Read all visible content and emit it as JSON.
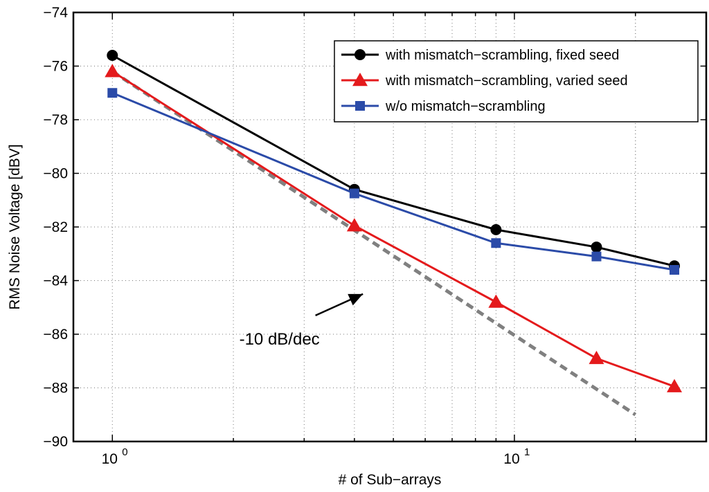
{
  "chart_data": {
    "type": "line",
    "xscale": "log",
    "xlabel": "# of Sub−arrays",
    "ylabel": "RMS Noise Voltage [dBV]",
    "xlim": [
      0.8,
      30
    ],
    "ylim": [
      -90,
      -74
    ],
    "x_ticks": [
      {
        "value": 1,
        "base": "10",
        "exp": "0"
      },
      {
        "value": 10,
        "base": "10",
        "exp": "1"
      }
    ],
    "y_ticks": [
      -74,
      -76,
      -78,
      -80,
      -82,
      -84,
      -86,
      -88,
      -90
    ],
    "y_tick_labels": [
      "−74",
      "−76",
      "−78",
      "−80",
      "−82",
      "−84",
      "−86",
      "−88",
      "−90"
    ],
    "grid": true,
    "legend_position": "top-right",
    "series": [
      {
        "name": "with mismatch−scrambling, fixed seed",
        "color": "#000000",
        "marker": "circle",
        "x": [
          1,
          4,
          9,
          16,
          25
        ],
        "y": [
          -75.6,
          -80.6,
          -82.1,
          -82.75,
          -83.45
        ]
      },
      {
        "name": "with mismatch−scrambling, varied seed",
        "color": "#e41a1c",
        "marker": "triangle",
        "x": [
          1,
          4,
          9,
          16,
          25
        ],
        "y": [
          -76.2,
          -81.95,
          -84.8,
          -86.9,
          -87.95
        ]
      },
      {
        "name": "w/o mismatch−scrambling",
        "color": "#2b4ba8",
        "marker": "square",
        "x": [
          1,
          4,
          9,
          16,
          25
        ],
        "y": [
          -77.0,
          -80.75,
          -82.6,
          -83.1,
          -83.6
        ]
      }
    ],
    "reference_line": {
      "color": "#808080",
      "style": "dashed",
      "x": [
        1,
        20
      ],
      "y": [
        -76.2,
        -89.0
      ]
    },
    "annotation": {
      "text": "-10 dB/dec",
      "arrow_from": [
        3.2,
        -85.3
      ],
      "arrow_to": [
        4.2,
        -84.5
      ]
    }
  }
}
